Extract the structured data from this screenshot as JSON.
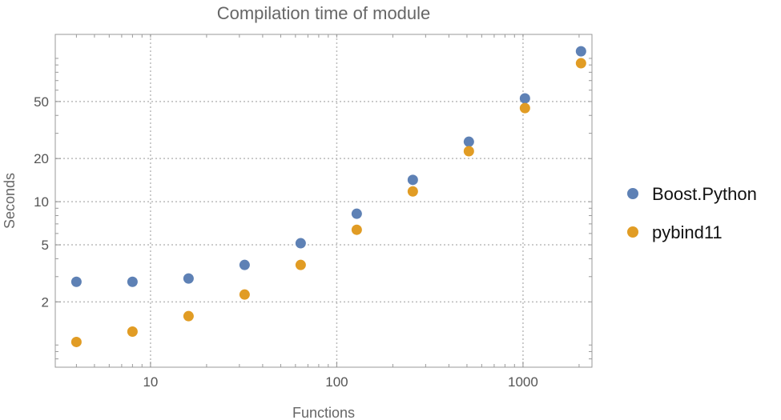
{
  "chart_data": {
    "type": "scatter",
    "title": "Compilation time of module",
    "xlabel": "Functions",
    "ylabel": "Seconds",
    "xscale": "log",
    "yscale": "log",
    "xlim": [
      3.08,
      2345
    ],
    "ylim": [
      0.7,
      147
    ],
    "grid": true,
    "legend_placement": "right",
    "x_ticks": [
      10,
      100,
      1000
    ],
    "x_tick_labels": [
      "10",
      "100",
      "1000"
    ],
    "y_ticks": [
      2,
      5,
      10,
      20,
      50
    ],
    "y_tick_labels": [
      "2",
      "5",
      "10",
      "20",
      "50"
    ],
    "x": [
      4,
      8,
      16,
      32,
      64,
      128,
      256,
      512,
      1024,
      2048
    ],
    "series": [
      {
        "name": "Boost.Python",
        "color": "#5e81b5",
        "values": [
          2.76,
          2.76,
          2.91,
          3.62,
          5.13,
          8.24,
          14.2,
          26.2,
          52.6,
          112
        ]
      },
      {
        "name": "pybind11",
        "color": "#e19c24",
        "values": [
          1.05,
          1.24,
          1.59,
          2.25,
          3.62,
          6.37,
          11.8,
          22.5,
          45,
          92.5
        ]
      }
    ]
  }
}
